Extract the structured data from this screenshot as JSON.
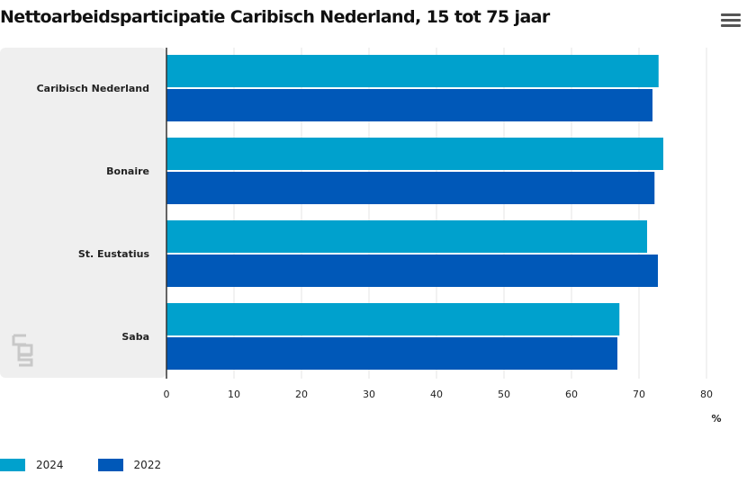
{
  "title": "Nettoarbeidsparticipatie Caribisch Nederland, 15 tot 75 jaar",
  "menu_icon": "hamburger-menu-icon",
  "logo_icon": "cbs-logo-icon",
  "colors": {
    "2024": "#00a1cd",
    "2022": "#0058b8",
    "panel": "#efefef"
  },
  "chart_data": {
    "type": "bar",
    "orientation": "horizontal",
    "title": "Nettoarbeidsparticipatie Caribisch Nederland, 15 tot 75 jaar",
    "categories": [
      "Caribisch Nederland",
      "Bonaire",
      "St. Eustatius",
      "Saba"
    ],
    "series": [
      {
        "name": "2024",
        "values": [
          72.9,
          73.6,
          71.2,
          67.1
        ]
      },
      {
        "name": "2022",
        "values": [
          72.0,
          72.3,
          72.8,
          66.8
        ]
      }
    ],
    "xlim": [
      0,
      80
    ],
    "ticks": [
      0,
      10,
      20,
      30,
      40,
      50,
      60,
      70,
      80
    ],
    "unit": "%",
    "grid": true,
    "legend_position": "bottom-left"
  }
}
